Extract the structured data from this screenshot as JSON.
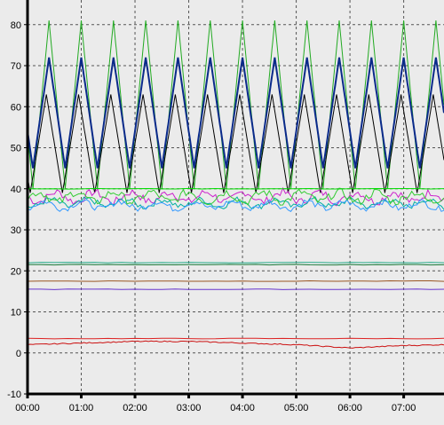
{
  "chart_data": {
    "type": "line",
    "title": "",
    "xlabel": "",
    "ylabel": "",
    "x_ticks": [
      "00:00",
      "01:00",
      "02:00",
      "03:00",
      "04:00",
      "05:00",
      "06:00",
      "07:00"
    ],
    "x_range_hours": [
      0,
      7.75
    ],
    "y_ticks": [
      -10,
      0,
      10,
      20,
      30,
      40,
      50,
      60,
      70,
      80
    ],
    "ylim": [
      -10,
      86
    ],
    "grid": true,
    "grid_style": "dashed",
    "legend": "none",
    "series": [
      {
        "color": "#22aa22",
        "kind": "cycle",
        "period": 0.6,
        "phase": 0.4,
        "min": 40,
        "max": 81
      },
      {
        "color": "#0a2a8a",
        "kind": "cycle",
        "period": 0.6,
        "phase": 0.4,
        "min": 45,
        "max": 72
      },
      {
        "color": "#000000",
        "kind": "cycle",
        "period": 0.6,
        "phase": 0.35,
        "min": 39,
        "max": 63
      },
      {
        "color": "#cc22cc",
        "kind": "noisy",
        "base": 38,
        "amp": 2.0
      },
      {
        "color": "#00b0a0",
        "kind": "noisy",
        "base": 36.5,
        "amp": 1.5
      },
      {
        "color": "#3399ff",
        "kind": "noisy",
        "base": 36,
        "amp": 1.5
      },
      {
        "color": "#33cc33",
        "kind": "noisy",
        "base": 38,
        "amp": 2.0
      },
      {
        "color": "#00dd00",
        "kind": "flat",
        "value": 40
      },
      {
        "color": "#22aa88",
        "kind": "flat",
        "value": 22
      },
      {
        "color": "#1a7a3a",
        "kind": "flat",
        "value": 21.5
      },
      {
        "color": "#995522",
        "kind": "flat",
        "value": 17.5
      },
      {
        "color": "#6633cc",
        "kind": "flat",
        "value": 15.5
      },
      {
        "color": "#dd2222",
        "kind": "flat",
        "value": 3.5
      },
      {
        "color": "#cc1111",
        "kind": "drift",
        "values": [
          [
            0,
            2.0
          ],
          [
            1,
            2.4
          ],
          [
            2,
            2.8
          ],
          [
            3,
            2.8
          ],
          [
            4,
            2.4
          ],
          [
            5,
            2.0
          ],
          [
            6,
            1.2
          ],
          [
            7,
            1.8
          ],
          [
            7.75,
            2.0
          ]
        ]
      }
    ],
    "colors": {
      "background": "#ebebeb",
      "axis": "#000000",
      "grid": "#555555"
    }
  }
}
